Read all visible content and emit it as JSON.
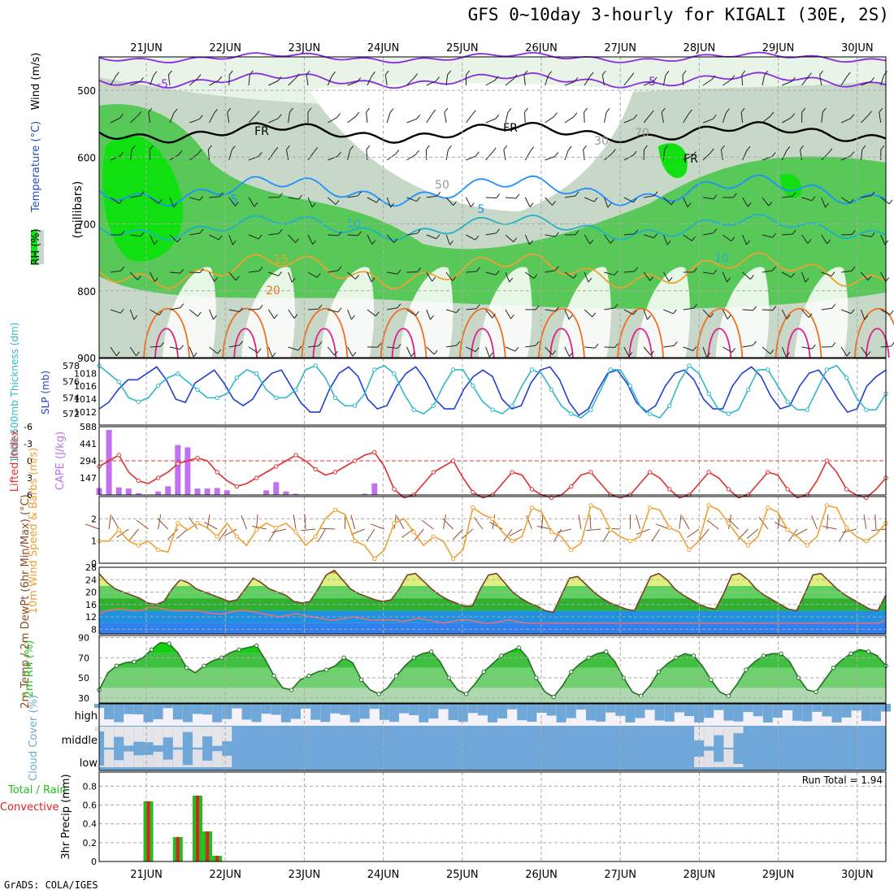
{
  "title": "GFS 0~10day 3-hourly for KIGALI (30E, 2S)",
  "credit": "GrADS: COLA/IGES",
  "colors": {
    "rh_light": "#e8f4e8",
    "rh_mid": "#c8d8c8",
    "rh_green": "#58c858",
    "rh_bright": "#10e010",
    "temp_purple": "#8a2be2",
    "temp_black": "#000000",
    "temp_blue": "#1e90ff",
    "temp_cyan": "#20b0c8",
    "temp_orange": "#f0a030",
    "temp_dorange": "#f07020",
    "temp_magenta": "#e0208a",
    "slp": "#2040d0",
    "thickness": "#30b8c8",
    "lifted": "#e03030",
    "cape": "#c070f0",
    "wind10": "#f0a030",
    "barbs": "#905030",
    "cloud": "#6fa8d8",
    "precip_total": "#20c020",
    "precip_conv": "#e02020"
  },
  "chart_data": [
    {
      "type": "heatmap",
      "name": "upper-air",
      "xlabels": [
        "21JUN",
        "22JUN",
        "23JUN",
        "24JUN",
        "25JUN",
        "26JUN",
        "27JUN",
        "28JUN",
        "29JUN",
        "30JUN"
      ],
      "ylabel": "(millibars)",
      "legend": [
        "RH (%)",
        "Temperature (°C)",
        "Wind (m/s)"
      ],
      "yticks": [
        500,
        600,
        700,
        800,
        900
      ],
      "contour_labels": [
        "-5",
        "-5",
        "FR",
        "FR",
        "FR",
        "5",
        "5",
        "10",
        "10",
        "15",
        "20",
        "30",
        "50",
        "70"
      ],
      "ylim": [
        450,
        900
      ]
    },
    {
      "type": "line",
      "name": "slp-thickness",
      "ylabel_left": "1000-500mb Thickness (dm)",
      "ylabel_right": "SLP (mb)",
      "thickness_ticks": [
        572,
        574,
        576,
        578
      ],
      "slp_ticks": [
        1012,
        1014,
        1016,
        1018
      ],
      "thickness_ylim": [
        571,
        578.5
      ],
      "slp_ylim": [
        1010.5,
        1019.8
      ],
      "series": [
        {
          "name": "SLP (mb)",
          "values": [
            1012.5,
            1013.5,
            1015.5,
            1017,
            1017,
            1018,
            1019,
            1017,
            1014,
            1013.5,
            1016.5,
            1017.5,
            1018.5,
            1016.5,
            1014,
            1013,
            1014,
            1016.5,
            1018,
            1018.5,
            1016,
            1013.5,
            1012,
            1012,
            1015.5,
            1018,
            1019,
            1017.5,
            1014,
            1012.5,
            1013,
            1016,
            1018,
            1019,
            1017,
            1014,
            1012.5,
            1012.5,
            1015.5,
            1017.5,
            1018.5,
            1017.5,
            1014,
            1012.5,
            1013,
            1016.5,
            1018.5,
            1019,
            1017,
            1013.5,
            1011.5,
            1012.5,
            1015.5,
            1018,
            1018.5,
            1016.5,
            1013.5,
            1012,
            1013,
            1016,
            1018,
            1018.5,
            1017,
            1014,
            1012.5,
            1012.5,
            1016,
            1018,
            1019,
            1017.5,
            1014.5,
            1012.5,
            1013,
            1016,
            1018,
            1018.5,
            1016.5,
            1014,
            1012,
            1012.5,
            1016,
            1017.5,
            1018.5
          ]
        },
        {
          "name": "1000-500mb Thickness (dm)",
          "values": [
            578,
            577,
            576,
            574,
            573.5,
            574,
            575.5,
            576.5,
            577,
            576,
            575,
            574,
            574,
            574.5,
            576.5,
            577.5,
            577,
            575,
            574,
            574,
            575,
            577.5,
            578,
            576.5,
            574,
            573,
            573,
            574.5,
            577.5,
            578,
            577,
            574.5,
            572.5,
            572,
            573,
            575.5,
            577.5,
            577.5,
            575.5,
            573.5,
            572.5,
            572,
            573,
            575.5,
            577.5,
            577,
            575,
            573,
            572,
            571.5,
            572.5,
            575,
            577.5,
            577.5,
            575.5,
            573,
            572,
            571.5,
            573,
            576,
            578,
            577,
            574.5,
            572.5,
            572,
            572.5,
            575,
            577.5,
            577.5,
            575.5,
            573.5,
            572.5,
            572.5,
            575,
            577.5,
            578,
            576.5,
            574,
            572.5,
            572.5,
            574.5
          ]
        }
      ]
    },
    {
      "type": "bar",
      "name": "cape-lifted-index",
      "ylabel_left": "Lifted Index",
      "ylabel_right": "CAPE (J/kg)",
      "li_ticks": [
        -6,
        -3,
        0,
        3,
        6
      ],
      "cape_ticks": [
        147,
        294,
        441,
        588
      ],
      "cape_ylim": [
        0,
        588
      ],
      "li_ylim": [
        6,
        -6
      ],
      "series": [
        {
          "name": "CAPE (J/kg)",
          "values": [
            60,
            560,
            65,
            55,
            15,
            0,
            30,
            75,
            430,
            410,
            55,
            55,
            60,
            40,
            0,
            0,
            0,
            40,
            110,
            30,
            10,
            5,
            0,
            0,
            0,
            0,
            0,
            10,
            100,
            0,
            0,
            0,
            0,
            0,
            0,
            0,
            0,
            0,
            0,
            0,
            0,
            0,
            0,
            0,
            0,
            0,
            0,
            0,
            0,
            0,
            0,
            0,
            0,
            0,
            0,
            0,
            0,
            0,
            0,
            0,
            0,
            0,
            0,
            0,
            0,
            0,
            0,
            0,
            0,
            0,
            0,
            0,
            0,
            0,
            0,
            0,
            0,
            0,
            0,
            0,
            0
          ]
        },
        {
          "name": "Lifted Index",
          "values": [
            1,
            0,
            -1,
            2,
            3.5,
            4,
            3,
            2,
            0.5,
            0,
            -0.5,
            0,
            2,
            3.5,
            4.5,
            4,
            3,
            2,
            1,
            0,
            -1,
            0,
            1.5,
            2.5,
            2,
            1,
            0,
            -1,
            -1.5,
            1,
            5,
            6.5,
            6,
            4,
            2,
            1,
            0,
            3,
            5.5,
            6.5,
            6,
            4,
            2,
            2.5,
            5,
            6,
            6.5,
            6,
            4.5,
            2.5,
            2,
            4,
            6,
            6.5,
            6,
            4,
            2,
            3,
            5,
            6.5,
            6,
            4,
            2,
            3,
            5,
            6.5,
            6,
            4,
            2,
            2.5,
            5,
            6.5,
            6,
            3.5,
            0,
            2,
            5,
            6,
            6.5,
            5,
            3
          ]
        }
      ]
    },
    {
      "type": "line",
      "name": "10m-wind",
      "ylabel": "10m Wind Speed & Barbs (m/s)",
      "yticks": [
        0,
        1,
        2
      ],
      "ylim": [
        0,
        3
      ],
      "series": [
        {
          "name": "Speed",
          "values": [
            1,
            1,
            1.5,
            1,
            0.8,
            1,
            0.6,
            0.5,
            1.8,
            1.5,
            1.8,
            1.6,
            1.2,
            1.8,
            1.2,
            0.8,
            1.5,
            1.8,
            1.6,
            1.8,
            1.4,
            0.8,
            1.2,
            2,
            2.4,
            2.2,
            1,
            0.8,
            0.2,
            0.6,
            1.8,
            2,
            1.4,
            0.8,
            1.2,
            1,
            0.2,
            0.6,
            2.5,
            2.2,
            2,
            1.4,
            1,
            1.2,
            2.5,
            2.3,
            1.4,
            1.2,
            0.6,
            0.9,
            2.6,
            2.4,
            1.5,
            1.2,
            1,
            1.2,
            2.5,
            2.4,
            1.6,
            1.4,
            0.6,
            1,
            2.6,
            2.4,
            1.8,
            1.2,
            0.8,
            1.2,
            2.5,
            2.3,
            1.5,
            1.2,
            0.8,
            1.2,
            2.6,
            2.5,
            1.6,
            1.2,
            1,
            1.3,
            1.8
          ]
        }
      ]
    },
    {
      "type": "area",
      "name": "2m-temp",
      "ylabel": "2m Temp / 2m DewPt (6hr Min/Max) (°C)",
      "yticks": [
        8,
        12,
        16,
        20,
        24,
        28
      ],
      "ylim": [
        6.5,
        28
      ],
      "series": [
        {
          "name": "2m Temp",
          "values": [
            26,
            23,
            21,
            20,
            19,
            18,
            16.5,
            16,
            17,
            21,
            24,
            23,
            21,
            20,
            19,
            18,
            17,
            17.5,
            21,
            24.5,
            23,
            21,
            20,
            19,
            17,
            16.5,
            17,
            21,
            25.5,
            27,
            24,
            21,
            19.5,
            18.5,
            17.5,
            17,
            17.5,
            21,
            25.5,
            26,
            23.5,
            21,
            19,
            17.5,
            16.5,
            15.5,
            15.5,
            21,
            25.5,
            26,
            23,
            20,
            18,
            16.5,
            15.5,
            14,
            13.5,
            19,
            24.5,
            25,
            22.5,
            20,
            18,
            16.5,
            15.5,
            14.5,
            14,
            19.5,
            25,
            26,
            24,
            21,
            19,
            17.5,
            16,
            15,
            14.5,
            19.5,
            25.5,
            26,
            24,
            21,
            19,
            17.5,
            16,
            14.5,
            14,
            19.5,
            25.5,
            26,
            23.5,
            21,
            19,
            17.5,
            16,
            14.5,
            14,
            19
          ]
        },
        {
          "name": "2m DewPt",
          "values": [
            13,
            14,
            14.5,
            14.5,
            14,
            14,
            15,
            15,
            14.5,
            14,
            14,
            14,
            14,
            13.5,
            13,
            13,
            13.5,
            14,
            14,
            13.5,
            13,
            12.5,
            12,
            12.5,
            13,
            12.5,
            12,
            11.5,
            11,
            11,
            11.5,
            12,
            11.5,
            11,
            11,
            11,
            11,
            10.5,
            11,
            11.5,
            11,
            10.5,
            10,
            10.5,
            11,
            11,
            10.5,
            10,
            10,
            10.5,
            11,
            10.5,
            10,
            10,
            10,
            10,
            10,
            10,
            10,
            10,
            10,
            10,
            10,
            10,
            10,
            10,
            10,
            10,
            10,
            10,
            10,
            10,
            10,
            10,
            10,
            10,
            10,
            10,
            10,
            10,
            10,
            10,
            10,
            10,
            10,
            10,
            10,
            10,
            10,
            10,
            10,
            10,
            10,
            10,
            10,
            10,
            11
          ]
        }
      ]
    },
    {
      "type": "area",
      "name": "2m-rh",
      "ylabel": "2m RH (%)",
      "yticks": [
        30,
        50,
        70,
        90
      ],
      "ylim": [
        25,
        92
      ],
      "series": [
        {
          "name": "2m RH",
          "values": [
            38,
            55,
            62,
            65,
            66,
            70,
            78,
            85,
            84,
            75,
            60,
            55,
            62,
            67,
            70,
            75,
            78,
            80,
            82,
            68,
            52,
            40,
            38,
            48,
            52,
            56,
            58,
            62,
            70,
            65,
            48,
            38,
            34,
            40,
            52,
            62,
            70,
            74,
            76,
            66,
            50,
            38,
            34,
            44,
            56,
            64,
            72,
            76,
            80,
            70,
            50,
            36,
            31,
            42,
            56,
            64,
            70,
            74,
            76,
            66,
            50,
            36,
            32,
            42,
            56,
            64,
            70,
            74,
            72,
            62,
            48,
            36,
            32,
            44,
            58,
            66,
            72,
            74,
            74,
            66,
            50,
            38,
            36,
            48,
            60,
            68,
            74,
            78,
            76,
            72,
            62
          ]
        }
      ]
    },
    {
      "type": "heatmap",
      "name": "cloud-cover",
      "ylabel": "Cloud Cover (%)",
      "rows": [
        "high",
        "middle",
        "low"
      ]
    },
    {
      "type": "bar",
      "name": "precip",
      "ylabel": "3hr Precip (mm)",
      "legend": [
        "Total / Rain",
        "Convective"
      ],
      "yticks": [
        0,
        0.2,
        0.4,
        0.6,
        0.8
      ],
      "ylim": [
        0,
        0.95
      ],
      "annotation": "Run Total = 1.94",
      "series": [
        {
          "name": "Total / Rain",
          "values": [
            0,
            0,
            0,
            0,
            0,
            0.64,
            0,
            0,
            0.26,
            0,
            0.7,
            0.32,
            0.06,
            0,
            0,
            0,
            0,
            0,
            0,
            0,
            0,
            0,
            0,
            0,
            0,
            0,
            0,
            0,
            0,
            0,
            0,
            0,
            0,
            0,
            0,
            0,
            0,
            0,
            0,
            0,
            0,
            0,
            0,
            0,
            0,
            0,
            0,
            0,
            0,
            0,
            0,
            0,
            0,
            0,
            0,
            0,
            0,
            0,
            0,
            0,
            0,
            0,
            0,
            0,
            0,
            0,
            0,
            0,
            0,
            0,
            0,
            0,
            0,
            0,
            0,
            0,
            0,
            0,
            0,
            0,
            0
          ]
        },
        {
          "name": "Convective",
          "values": [
            0,
            0,
            0,
            0,
            0,
            0.64,
            0,
            0,
            0.26,
            0,
            0.7,
            0.32,
            0.06,
            0,
            0,
            0,
            0,
            0,
            0,
            0,
            0,
            0,
            0,
            0,
            0,
            0,
            0,
            0,
            0,
            0,
            0,
            0,
            0,
            0,
            0,
            0,
            0,
            0,
            0,
            0,
            0,
            0,
            0,
            0,
            0,
            0,
            0,
            0,
            0,
            0,
            0,
            0,
            0,
            0,
            0,
            0,
            0,
            0,
            0,
            0,
            0,
            0,
            0,
            0,
            0,
            0,
            0,
            0,
            0,
            0,
            0,
            0,
            0,
            0,
            0,
            0,
            0,
            0,
            0,
            0,
            0
          ]
        }
      ]
    }
  ]
}
